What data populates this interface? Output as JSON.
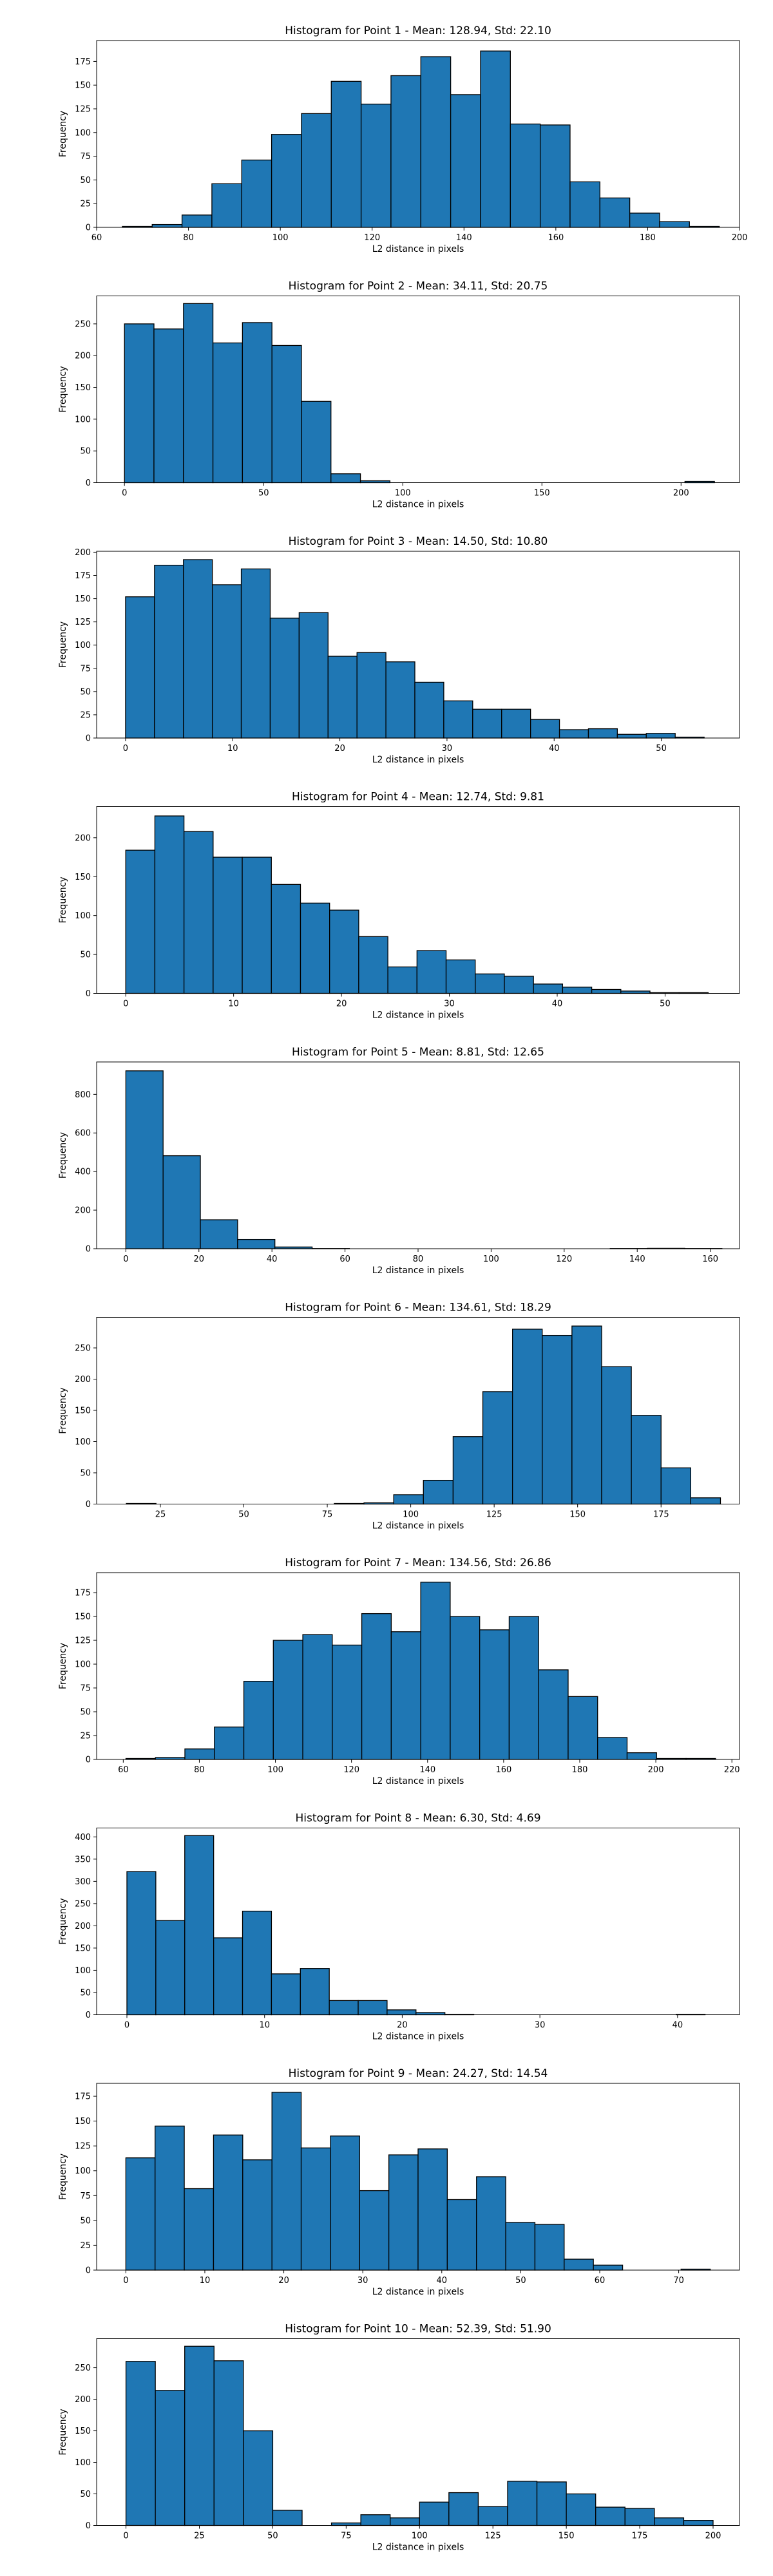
{
  "figure": {
    "bar_color": "#1f77b4",
    "edge_color": "#000000",
    "common_xlabel": "L2 distance in pixels",
    "common_ylabel": "Frequency"
  },
  "chart_data": [
    {
      "type": "bar",
      "title": "Histogram for Point 1 - Mean: 128.94, Std: 22.10",
      "xlabel": "L2 distance in pixels",
      "ylabel": "Frequency",
      "xlim": [
        60,
        200
      ],
      "ylim": [
        0,
        197
      ],
      "xticks": [
        60,
        80,
        100,
        120,
        140,
        160,
        180,
        200
      ],
      "yticks": [
        0,
        25,
        50,
        75,
        100,
        125,
        150,
        175
      ],
      "bin_start": 65.6,
      "bin_width": 6.5,
      "values": [
        1,
        3,
        13,
        46,
        71,
        98,
        120,
        154,
        130,
        160,
        180,
        140,
        186,
        109,
        108,
        48,
        31,
        15,
        6,
        1
      ]
    },
    {
      "type": "bar",
      "title": "Histogram for Point 2 - Mean: 34.11, Std: 20.75",
      "xlabel": "L2 distance in pixels",
      "ylabel": "Frequency",
      "xlim": [
        -10,
        221
      ],
      "ylim": [
        0,
        294
      ],
      "xticks": [
        0,
        50,
        100,
        150,
        200
      ],
      "yticks": [
        0,
        50,
        100,
        150,
        200,
        250
      ],
      "bin_start": 0,
      "bin_width": 10.6,
      "values": [
        250,
        242,
        282,
        220,
        252,
        216,
        128,
        14,
        3,
        0,
        0,
        0,
        0,
        0,
        0,
        0,
        0,
        0,
        0,
        2
      ]
    },
    {
      "type": "bar",
      "title": "Histogram for Point 3 - Mean: 14.50, Std: 10.80",
      "xlabel": "L2 distance in pixels",
      "ylabel": "Frequency",
      "xlim": [
        -2.7,
        57.3
      ],
      "ylim": [
        0,
        201
      ],
      "xticks": [
        0,
        10,
        20,
        30,
        40,
        50
      ],
      "yticks": [
        0,
        25,
        50,
        75,
        100,
        125,
        150,
        175,
        200
      ],
      "bin_start": 0,
      "bin_width": 2.7,
      "values": [
        152,
        186,
        192,
        165,
        182,
        129,
        135,
        88,
        92,
        82,
        60,
        40,
        31,
        31,
        20,
        9,
        10,
        4,
        5,
        1
      ]
    },
    {
      "type": "bar",
      "title": "Histogram for Point 4 - Mean: 12.74, Std: 9.81",
      "xlabel": "L2 distance in pixels",
      "ylabel": "Frequency",
      "xlim": [
        -2.7,
        56.9
      ],
      "ylim": [
        0,
        240
      ],
      "xticks": [
        0,
        10,
        20,
        30,
        40,
        50
      ],
      "yticks": [
        0,
        50,
        100,
        150,
        200
      ],
      "bin_start": 0,
      "bin_width": 2.7,
      "values": [
        184,
        228,
        208,
        175,
        175,
        140,
        116,
        107,
        73,
        34,
        55,
        43,
        25,
        22,
        12,
        8,
        5,
        3,
        1,
        1
      ]
    },
    {
      "type": "bar",
      "title": "Histogram for Point 5 - Mean: 8.81, Std: 12.65",
      "xlabel": "L2 distance in pixels",
      "ylabel": "Frequency",
      "xlim": [
        -8,
        168
      ],
      "ylim": [
        0,
        968
      ],
      "xticks": [
        0,
        20,
        40,
        60,
        80,
        100,
        120,
        140,
        160
      ],
      "yticks": [
        0,
        200,
        400,
        600,
        800
      ],
      "bin_start": 0,
      "bin_width": 10.2,
      "values": [
        922,
        482,
        150,
        48,
        9,
        1,
        0,
        0,
        0,
        0,
        0,
        0,
        0,
        1,
        2,
        1,
        0,
        0,
        0,
        1
      ]
    },
    {
      "type": "bar",
      "title": "Histogram for Point 6 - Mean: 134.61, Std: 18.29",
      "xlabel": "L2 distance in pixels",
      "ylabel": "Frequency",
      "xlim": [
        5.9,
        198.5
      ],
      "ylim": [
        0,
        299
      ],
      "xticks": [
        25,
        50,
        75,
        100,
        125,
        150,
        175
      ],
      "yticks": [
        0,
        50,
        100,
        150,
        200,
        250
      ],
      "bin_start": 14.8,
      "bin_width": 8.9,
      "values": [
        1,
        0,
        0,
        0,
        0,
        0,
        0,
        1,
        2,
        15,
        38,
        108,
        180,
        280,
        270,
        285,
        220,
        142,
        58,
        10
      ]
    },
    {
      "type": "bar",
      "title": "Histogram for Point 7 - Mean: 134.56, Std: 26.86",
      "xlabel": "L2 distance in pixels",
      "ylabel": "Frequency",
      "xlim": [
        53,
        222
      ],
      "ylim": [
        0,
        196
      ],
      "xticks": [
        60,
        80,
        100,
        120,
        140,
        160,
        180,
        200,
        220
      ],
      "yticks": [
        0,
        25,
        50,
        75,
        100,
        125,
        150,
        175
      ],
      "bin_start": 60.7,
      "bin_width": 7.75,
      "values": [
        1,
        2,
        11,
        34,
        82,
        125,
        131,
        120,
        153,
        134,
        186,
        150,
        136,
        150,
        94,
        66,
        23,
        7,
        1,
        1
      ]
    },
    {
      "type": "bar",
      "title": "Histogram for Point 8 - Mean: 6.30, Std: 4.69",
      "xlabel": "L2 distance in pixels",
      "ylabel": "Frequency",
      "xlim": [
        -2.2,
        44.5
      ],
      "ylim": [
        0,
        420
      ],
      "xticks": [
        0,
        10,
        20,
        30,
        40
      ],
      "yticks": [
        0,
        50,
        100,
        150,
        200,
        250,
        300,
        350,
        400
      ],
      "bin_start": 0,
      "bin_width": 2.1,
      "values": [
        322,
        212,
        403,
        173,
        233,
        92,
        104,
        32,
        32,
        11,
        5,
        1,
        0,
        0,
        0,
        0,
        0,
        0,
        0,
        1
      ]
    },
    {
      "type": "bar",
      "title": "Histogram for Point 9 - Mean: 24.27, Std: 14.54",
      "xlabel": "L2 distance in pixels",
      "ylabel": "Frequency",
      "xlim": [
        -3.7,
        77.7
      ],
      "ylim": [
        0,
        188
      ],
      "xticks": [
        0,
        10,
        20,
        30,
        40,
        50,
        60,
        70
      ],
      "yticks": [
        0,
        25,
        50,
        75,
        100,
        125,
        150,
        175
      ],
      "bin_start": 0,
      "bin_width": 3.7,
      "values": [
        113,
        145,
        82,
        136,
        111,
        179,
        123,
        135,
        80,
        116,
        122,
        71,
        94,
        48,
        46,
        11,
        5,
        0,
        0,
        1
      ]
    },
    {
      "type": "bar",
      "title": "Histogram for Point 10 - Mean: 52.39, Std: 51.90",
      "xlabel": "L2 distance in pixels",
      "ylabel": "Frequency",
      "xlim": [
        -10,
        209
      ],
      "ylim": [
        0,
        296
      ],
      "xticks": [
        0,
        25,
        50,
        75,
        100,
        125,
        150,
        175,
        200
      ],
      "yticks": [
        0,
        50,
        100,
        150,
        200,
        250
      ],
      "bin_start": 0,
      "bin_width": 10,
      "values": [
        260,
        214,
        284,
        261,
        150,
        24,
        0,
        4,
        17,
        12,
        37,
        52,
        30,
        70,
        69,
        50,
        29,
        27,
        12,
        8
      ]
    }
  ]
}
